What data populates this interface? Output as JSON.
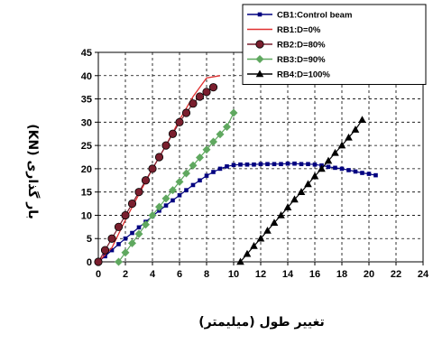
{
  "chart_data": {
    "type": "line",
    "title": "",
    "xlabel": "تغییر طول (میلیمتر)",
    "ylabel": "بار گذاری (KN)",
    "xlim": [
      0,
      24
    ],
    "ylim": [
      0,
      45
    ],
    "x_ticks": [
      "0",
      "2",
      "4",
      "6",
      "8",
      "10",
      "12",
      "14",
      "16",
      "18",
      "20",
      "22",
      "24"
    ],
    "y_ticks": [
      "0",
      "5",
      "10",
      "15",
      "20",
      "25",
      "30",
      "35",
      "40",
      "45"
    ],
    "grid": true,
    "legend_position": "top-right",
    "series": [
      {
        "name": "CB1:Control beam",
        "color": "#000080",
        "marker": "square",
        "x": [
          0,
          0.5,
          1,
          1.5,
          2,
          2.5,
          3,
          3.5,
          4,
          4.5,
          5,
          5.5,
          6,
          6.5,
          7,
          7.5,
          8,
          8.5,
          9,
          9.5,
          10,
          10.5,
          11,
          11.5,
          12,
          12.5,
          13,
          13.5,
          14,
          14.5,
          15,
          15.5,
          16,
          16.5,
          17,
          17.5,
          18,
          18.5,
          19,
          19.5,
          20,
          20.5
        ],
        "y": [
          0,
          1.2,
          2.5,
          3.8,
          5,
          6.2,
          7.4,
          8.6,
          9.8,
          11,
          12.1,
          13.2,
          14.3,
          15.4,
          16.5,
          17.5,
          18.5,
          19.3,
          20,
          20.5,
          20.8,
          20.9,
          20.9,
          20.9,
          21,
          21,
          21,
          21,
          21.1,
          21.1,
          21,
          21,
          20.9,
          20.7,
          20.4,
          20.2,
          20,
          19.7,
          19.4,
          19.1,
          18.9,
          18.6
        ]
      },
      {
        "name": "RB1:D=0%",
        "color": "#e03030",
        "marker": "none",
        "x": [
          0,
          1,
          2,
          3,
          4,
          5,
          6,
          7,
          8,
          9
        ],
        "y": [
          0,
          3,
          9,
          14.5,
          20,
          25,
          30.5,
          35.5,
          39.5,
          40
        ]
      },
      {
        "name": "RB2:D=80%",
        "color": "#7a1f2e",
        "marker": "circle",
        "x": [
          0,
          0.5,
          1,
          1.5,
          2,
          2.5,
          3,
          3.5,
          4,
          4.5,
          5,
          5.5,
          6,
          6.5,
          7,
          7.5,
          8,
          8.5
        ],
        "y": [
          0,
          2.5,
          5,
          7.5,
          10,
          12.5,
          15,
          17.5,
          20,
          22.5,
          25,
          27.5,
          30,
          32,
          34,
          35.5,
          36.5,
          37.5
        ]
      },
      {
        "name": "RB3:D=90%",
        "color": "#5fa85f",
        "marker": "diamond",
        "x": [
          1.5,
          2,
          2.5,
          3,
          3.5,
          4,
          4.5,
          5,
          5.5,
          6,
          6.5,
          7,
          7.5,
          8,
          8.5,
          9,
          9.5,
          10
        ],
        "y": [
          0,
          2,
          4,
          6,
          8,
          10,
          11.8,
          13.6,
          15.4,
          17.2,
          19,
          20.7,
          22.4,
          24.1,
          25.8,
          27.4,
          29,
          32
        ]
      },
      {
        "name": "RB4:D=100%",
        "color": "#000000",
        "marker": "triangle",
        "x": [
          10.5,
          11,
          11.5,
          12,
          12.5,
          13,
          13.5,
          14,
          14.5,
          15,
          15.5,
          16,
          16.5,
          17,
          17.5,
          18,
          18.5,
          19,
          19.5
        ],
        "y": [
          0,
          1.7,
          3.4,
          5,
          6.7,
          8.4,
          10,
          11.7,
          13.4,
          15,
          16.7,
          18.4,
          20,
          21.7,
          23.4,
          25,
          26.7,
          28.4,
          30.5
        ]
      }
    ]
  }
}
